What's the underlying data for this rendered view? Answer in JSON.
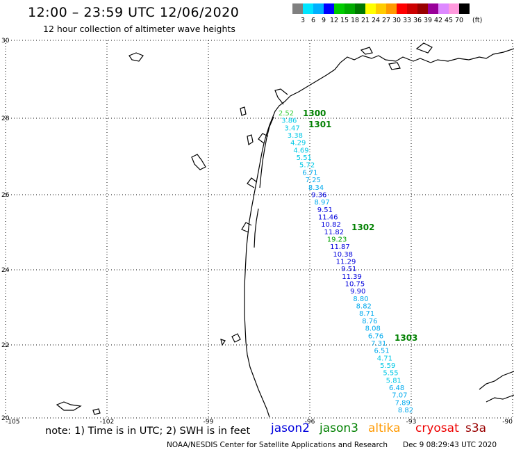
{
  "header": {
    "title": "12:00 – 23:59 UTC 12/06/2020",
    "subtitle": "12 hour collection of altimeter wave heights"
  },
  "color_scale": {
    "labels": [
      "3",
      "6",
      "9",
      "12",
      "15",
      "18",
      "21",
      "24",
      "27",
      "30",
      "33",
      "36",
      "39",
      "42",
      "45",
      "70"
    ],
    "unit": "(ft)",
    "colors": [
      "#808080",
      "#00e5ff",
      "#00b0ff",
      "#0000ff",
      "#00cc00",
      "#00aa00",
      "#007700",
      "#ffff00",
      "#ffcc00",
      "#ff9900",
      "#ff0000",
      "#cc0000",
      "#990000",
      "#990099",
      "#dd88ff",
      "#ff99dd",
      "#000000"
    ]
  },
  "axes": {
    "lat_labels": [
      "30",
      "28",
      "26",
      "24",
      "22",
      "20"
    ],
    "lon_labels": [
      "-105",
      "-102",
      "-99",
      "-96",
      "-93",
      "-90"
    ]
  },
  "passes": [
    {
      "label": "1300",
      "color": "#008000"
    },
    {
      "label": "1301",
      "color": "#008000"
    },
    {
      "label": "1302",
      "color": "#008000"
    },
    {
      "label": "1303",
      "color": "#008000"
    }
  ],
  "wave_heights": [
    {
      "text": "2.52",
      "color": "#33cc33"
    },
    {
      "text": "3.86",
      "color": "#00c8e6"
    },
    {
      "text": "3.47",
      "color": "#00c8e6"
    },
    {
      "text": "3.38",
      "color": "#00c8e6"
    },
    {
      "text": "4.29",
      "color": "#00c8e6"
    },
    {
      "text": "4.69",
      "color": "#00c8e6"
    },
    {
      "text": "5.51",
      "color": "#00c8e6"
    },
    {
      "text": "5.72",
      "color": "#00c8e6"
    },
    {
      "text": "6.71",
      "color": "#00aaee"
    },
    {
      "text": "7.25",
      "color": "#00aaee"
    },
    {
      "text": "8.34",
      "color": "#00aaee"
    },
    {
      "text": "9.36",
      "color": "#0000dd"
    },
    {
      "text": "8.97",
      "color": "#00aaee"
    },
    {
      "text": "9.51",
      "color": "#0000dd"
    },
    {
      "text": "11.46",
      "color": "#0000dd"
    },
    {
      "text": "10.82",
      "color": "#0000dd"
    },
    {
      "text": "11.82",
      "color": "#0000dd"
    },
    {
      "text": "19.23",
      "color": "#00a000"
    },
    {
      "text": "11.87",
      "color": "#0000dd"
    },
    {
      "text": "10.38",
      "color": "#0000dd"
    },
    {
      "text": "11.29",
      "color": "#0000dd"
    },
    {
      "text": "9.51",
      "color": "#0000dd"
    },
    {
      "text": "11.39",
      "color": "#0000dd"
    },
    {
      "text": "10.75",
      "color": "#0000dd"
    },
    {
      "text": "9.90",
      "color": "#0000dd"
    },
    {
      "text": "8.80",
      "color": "#00aaee"
    },
    {
      "text": "8.82",
      "color": "#00aaee"
    },
    {
      "text": "8.71",
      "color": "#00aaee"
    },
    {
      "text": "8.76",
      "color": "#00aaee"
    },
    {
      "text": "8.08",
      "color": "#00aaee"
    },
    {
      "text": "6.76",
      "color": "#00aaee"
    },
    {
      "text": "7.31",
      "color": "#00aaee"
    },
    {
      "text": "6.51",
      "color": "#00aaee"
    },
    {
      "text": "4.71",
      "color": "#00c8e6"
    },
    {
      "text": "5.59",
      "color": "#00c8e6"
    },
    {
      "text": "5.55",
      "color": "#00c8e6"
    },
    {
      "text": "5.81",
      "color": "#00c8e6"
    },
    {
      "text": "6.48",
      "color": "#00aaee"
    },
    {
      "text": "7.07",
      "color": "#00aaee"
    },
    {
      "text": "7.89",
      "color": "#00aaee"
    },
    {
      "text": "8.82",
      "color": "#00aaee"
    }
  ],
  "footer": {
    "note": "note: 1) Time is in UTC; 2) SWH is in feet",
    "satellites": [
      {
        "name": "jason2",
        "color": "#0000dd"
      },
      {
        "name": "jason3",
        "color": "#008000"
      },
      {
        "name": "altika",
        "color": "#ff9900"
      },
      {
        "name": "cryosat",
        "color": "#ee0000"
      },
      {
        "name": "s3a",
        "color": "#990000"
      }
    ],
    "credit": "NOAA/NESDIS Center for Satellite Applications and Research",
    "generated": "Dec  9 08:29:43 UTC 2020"
  }
}
